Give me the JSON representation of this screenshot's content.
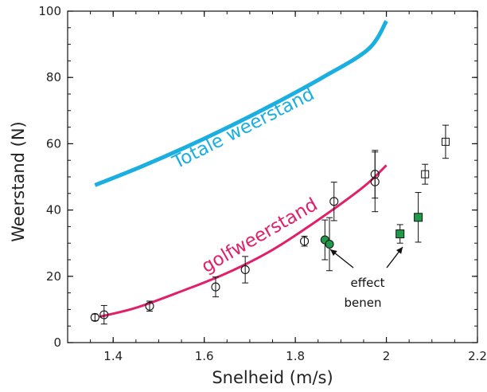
{
  "chart_data": {
    "type": "scatter",
    "xlabel": "Snelheid (m/s)",
    "ylabel": "Weerstand (N)",
    "xlim": [
      1.3,
      2.2
    ],
    "ylim": [
      0,
      100
    ],
    "xticks": [
      1.4,
      1.6,
      1.8,
      2.0,
      2.2
    ],
    "xtick_labels": [
      "1.4",
      "1.6",
      "1.8",
      "2",
      "2.2"
    ],
    "yticks": [
      0,
      20,
      40,
      60,
      80,
      100
    ],
    "ytick_labels": [
      "0",
      "20",
      "40",
      "60",
      "80",
      "100"
    ],
    "grid": false,
    "colors": {
      "total": "#1AAFE0",
      "wave": "#E0206A",
      "green": "#1F9A4A",
      "axis": "#111111"
    },
    "curves": [
      {
        "label": "Totale weerstand",
        "color": "#1AAFE0",
        "x": [
          1.36,
          1.46,
          1.56,
          1.66,
          1.76,
          1.86,
          1.96,
          2.0
        ],
        "y": [
          47.5,
          53.0,
          59.0,
          65.5,
          72.5,
          80.0,
          88.5,
          97.0
        ]
      },
      {
        "label": "golfweerstand",
        "color": "#E0206A",
        "x": [
          1.37,
          1.45,
          1.55,
          1.65,
          1.75,
          1.85,
          1.95,
          2.0
        ],
        "y": [
          7.8,
          10.5,
          15.5,
          21.0,
          28.0,
          37.0,
          47.0,
          53.5
        ]
      }
    ],
    "series": [
      {
        "marker": "circle-open",
        "points": [
          {
            "x": 1.36,
            "y": 7.6,
            "err": 1.0
          },
          {
            "x": 1.38,
            "y": 8.4,
            "err": 2.8
          },
          {
            "x": 1.48,
            "y": 11.0,
            "err": 1.5
          },
          {
            "x": 1.625,
            "y": 16.8,
            "err": 3.0
          },
          {
            "x": 1.69,
            "y": 22.0,
            "err": 4.0
          },
          {
            "x": 1.82,
            "y": 30.6,
            "err": 1.5
          },
          {
            "x": 1.885,
            "y": 42.6,
            "err": 5.8
          },
          {
            "x": 1.975,
            "y": 50.8,
            "err": 7.2
          },
          {
            "x": 1.975,
            "y": 48.5,
            "err": 9.0
          }
        ]
      },
      {
        "marker": "circle-filled",
        "points": [
          {
            "x": 1.865,
            "y": 31.0,
            "err": 6.0
          },
          {
            "x": 1.875,
            "y": 29.7,
            "err": 8.0
          }
        ]
      },
      {
        "marker": "square-filled",
        "points": [
          {
            "x": 2.03,
            "y": 32.8,
            "err": 2.8
          },
          {
            "x": 2.07,
            "y": 37.8,
            "err": 7.5
          }
        ]
      },
      {
        "marker": "square-open",
        "points": [
          {
            "x": 2.085,
            "y": 50.8,
            "err": 3.0
          },
          {
            "x": 2.13,
            "y": 60.6,
            "err": 5.0
          }
        ]
      }
    ],
    "annotations": [
      {
        "lines": [
          "effect",
          "benen"
        ]
      }
    ]
  }
}
